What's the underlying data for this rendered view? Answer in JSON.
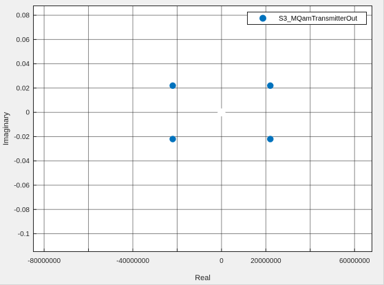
{
  "chart_data": {
    "type": "scatter",
    "title": "",
    "xlabel": "Real",
    "ylabel": "Imaginary",
    "xlim": [
      -85000000,
      68000000
    ],
    "ylim": [
      -0.115,
      0.088
    ],
    "x_ticks": [
      {
        "value": -80000000,
        "label": "-80000000"
      },
      {
        "value": -60000000,
        "label": ""
      },
      {
        "value": -40000000,
        "label": "-40000000"
      },
      {
        "value": -20000000,
        "label": ""
      },
      {
        "value": 0,
        "label": "0"
      },
      {
        "value": 20000000,
        "label": "20000000"
      },
      {
        "value": 40000000,
        "label": ""
      },
      {
        "value": 60000000,
        "label": "60000000"
      }
    ],
    "y_ticks": [
      {
        "value": 0.08,
        "label": "0.08"
      },
      {
        "value": 0.06,
        "label": "0.06"
      },
      {
        "value": 0.04,
        "label": "0.04"
      },
      {
        "value": 0.02,
        "label": "0.02"
      },
      {
        "value": 0,
        "label": "0"
      },
      {
        "value": -0.02,
        "label": "-0.02"
      },
      {
        "value": -0.04,
        "label": "-0.04"
      },
      {
        "value": -0.06,
        "label": "-0.06"
      },
      {
        "value": -0.08,
        "label": "-0.08"
      },
      {
        "value": -0.1,
        "label": "-0.1"
      }
    ],
    "grid": true,
    "legend_position": "top-right",
    "series": [
      {
        "name": "S3_MQamTransmitterOut",
        "color": "#0072bd",
        "marker": "filled-circle",
        "points": [
          {
            "x": -22000000,
            "y": 0.022
          },
          {
            "x": 22000000,
            "y": 0.022
          },
          {
            "x": -22000000,
            "y": -0.022
          },
          {
            "x": 22000000,
            "y": -0.022
          }
        ]
      }
    ],
    "annotations": [
      {
        "type": "white-diamond-marker",
        "x": 0,
        "y": 0,
        "color": "#ffffff"
      }
    ]
  }
}
